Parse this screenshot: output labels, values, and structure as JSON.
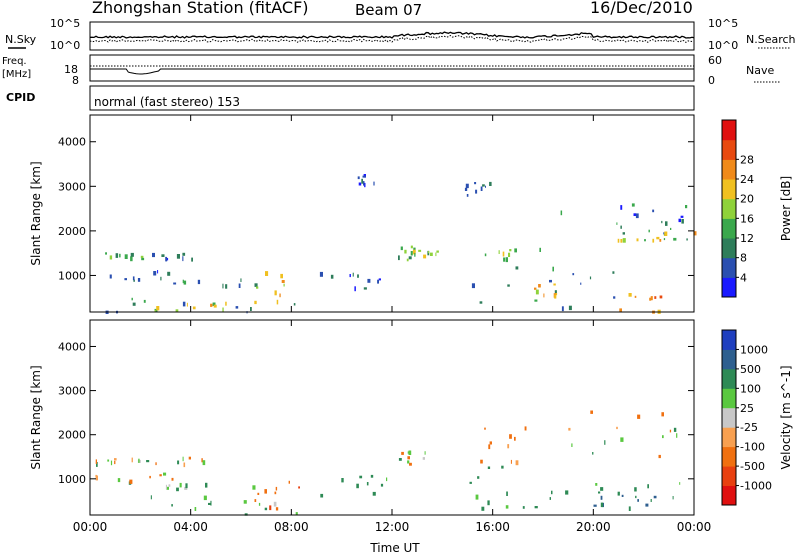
{
  "header": {
    "station": "Zhongshan Station (fitACF)",
    "beam": "Beam 07",
    "date": "16/Dec/2010"
  },
  "noise_panel": {
    "left_label": "N.Sky",
    "right_label": "N.Search",
    "left_ticks": [
      "10^5",
      "10^0"
    ],
    "right_ticks": [
      "10^5",
      "10^0"
    ]
  },
  "freq_panel": {
    "left_label_1": "Freq.",
    "left_label_2": "[MHz]",
    "left_ticks": [
      "18",
      "8"
    ],
    "right_label": "Nave",
    "right_ticks": [
      "60",
      "0"
    ]
  },
  "cpid_panel": {
    "label": "CPID",
    "text": "normal (fast stereo) 153"
  },
  "chart_data": [
    {
      "type": "heatmap",
      "title": "",
      "xlabel": "",
      "ylabel": "Slant Range [km]",
      "x_ticks": [
        "00:00",
        "04:00",
        "08:00",
        "12:00",
        "16:00",
        "20:00",
        "00:00"
      ],
      "y_ticks": [
        1000,
        2000,
        3000,
        4000
      ],
      "ylim": [
        180,
        4600
      ],
      "colorbar_label": "Power [dB]",
      "colorbar_ticks": [
        "4",
        "8",
        "12",
        "16",
        "20",
        "24",
        "28"
      ],
      "colorbar_colors": [
        "#1a1aff",
        "#2a4fb0",
        "#2e7d5a",
        "#3aa84c",
        "#8fd23a",
        "#f0c020",
        "#f08a1a",
        "#e84a10",
        "#e01010"
      ],
      "regions": [
        {
          "t0": 0.0,
          "t1": 2.2,
          "r0": 1380,
          "r1": 1620,
          "v": 14
        },
        {
          "t0": 2.2,
          "t1": 4.5,
          "r0": 1350,
          "r1": 1520,
          "v": 8
        },
        {
          "t0": 0.0,
          "t1": 3.5,
          "r0": 900,
          "r1": 1150,
          "v": 8
        },
        {
          "t0": 3.0,
          "t1": 7.0,
          "r0": 800,
          "r1": 950,
          "v": 10
        },
        {
          "t0": 0.0,
          "t1": 8.5,
          "r0": 200,
          "r1": 650,
          "v": 10
        },
        {
          "t0": 2.5,
          "t1": 5.5,
          "r0": 200,
          "r1": 450,
          "v": 22
        },
        {
          "t0": 6.5,
          "t1": 8.3,
          "r0": 400,
          "r1": 1100,
          "v": 20
        },
        {
          "t0": 9.0,
          "t1": 12.0,
          "r0": 700,
          "r1": 1200,
          "v": 8
        },
        {
          "t0": 11.8,
          "t1": 13.5,
          "r0": 1350,
          "r1": 1700,
          "v": 14
        },
        {
          "t0": 12.8,
          "t1": 13.8,
          "r0": 1450,
          "r1": 1600,
          "v": 20
        },
        {
          "t0": 15.5,
          "t1": 18.0,
          "r0": 1350,
          "r1": 1650,
          "v": 16
        },
        {
          "t0": 15.0,
          "t1": 21.0,
          "r0": 300,
          "r1": 1300,
          "v": 10
        },
        {
          "t0": 17.5,
          "t1": 18.5,
          "r0": 500,
          "r1": 900,
          "v": 24
        },
        {
          "t0": 18.5,
          "t1": 24.0,
          "r0": 1800,
          "r1": 2700,
          "v": 12
        },
        {
          "t0": 19.0,
          "t1": 24.0,
          "r0": 1800,
          "r1": 2000,
          "v": 22
        },
        {
          "t0": 20.5,
          "t1": 23.5,
          "r0": 2200,
          "r1": 2600,
          "v": 6
        },
        {
          "t0": 21.0,
          "t1": 22.8,
          "r0": 200,
          "r1": 650,
          "v": 26
        },
        {
          "t0": 14.5,
          "t1": 16.0,
          "r0": 2800,
          "r1": 3100,
          "v": 6
        },
        {
          "t0": 10.5,
          "t1": 11.5,
          "r0": 3000,
          "r1": 3300,
          "v": 6
        }
      ]
    },
    {
      "type": "heatmap",
      "title": "",
      "xlabel": "Time UT",
      "ylabel": "Slant Range [km]",
      "x_ticks": [
        "00:00",
        "04:00",
        "08:00",
        "12:00",
        "16:00",
        "20:00",
        "00:00"
      ],
      "y_ticks": [
        1000,
        2000,
        3000,
        4000
      ],
      "ylim": [
        180,
        4600
      ],
      "colorbar_label": "Velocity [m s^-1]",
      "colorbar_ticks": [
        "1000",
        "500",
        "100",
        "25",
        "-25",
        "-100",
        "-500",
        "-1000"
      ],
      "colorbar_colors": [
        "#1f3fbf",
        "#2e5f8f",
        "#2e8a55",
        "#5ac840",
        "#c8c8c8",
        "#f8a050",
        "#f07010",
        "#e84010",
        "#e01010"
      ],
      "regions": [
        {
          "t0": 0.0,
          "t1": 2.2,
          "r0": 1380,
          "r1": 1620,
          "v": 0
        },
        {
          "t0": 2.2,
          "t1": 4.5,
          "r0": 1350,
          "r1": 1520,
          "v": 0
        },
        {
          "t0": 0.0,
          "t1": 3.5,
          "r0": 900,
          "r1": 1150,
          "v": 0
        },
        {
          "t0": 3.0,
          "t1": 7.0,
          "r0": 800,
          "r1": 950,
          "v": 50
        },
        {
          "t0": 0.0,
          "t1": 8.5,
          "r0": 200,
          "r1": 650,
          "v": 150
        },
        {
          "t0": 6.5,
          "t1": 8.3,
          "r0": 350,
          "r1": 1000,
          "v": -400
        },
        {
          "t0": 9.0,
          "t1": 12.0,
          "r0": 600,
          "r1": 1100,
          "v": 200
        },
        {
          "t0": 11.8,
          "t1": 13.5,
          "r0": 1350,
          "r1": 1650,
          "v": 0
        },
        {
          "t0": 15.0,
          "t1": 18.0,
          "r0": 300,
          "r1": 1300,
          "v": 200
        },
        {
          "t0": 15.5,
          "t1": 17.5,
          "r0": 1300,
          "r1": 2300,
          "v": -150
        },
        {
          "t0": 18.5,
          "t1": 24.0,
          "r0": 1500,
          "r1": 2700,
          "v": 0
        },
        {
          "t0": 18.0,
          "t1": 23.5,
          "r0": 300,
          "r1": 1100,
          "v": 200
        },
        {
          "t0": 20.0,
          "t1": 22.5,
          "r0": 400,
          "r1": 650,
          "v": 600
        }
      ]
    }
  ]
}
